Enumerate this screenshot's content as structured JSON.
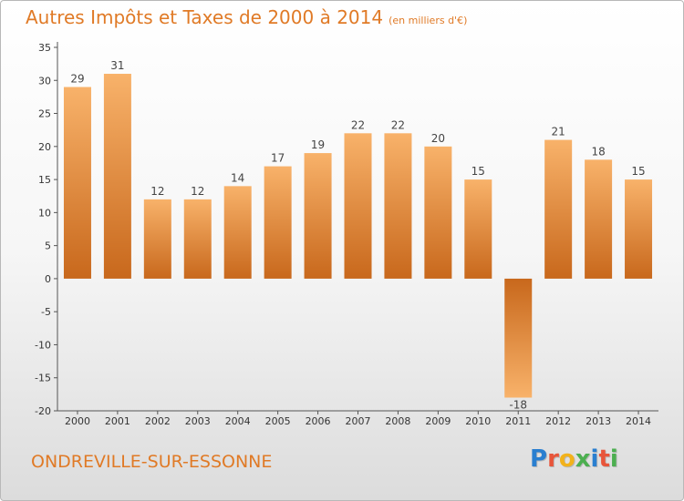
{
  "title": "Autres Impôts et Taxes de 2000 à 2014",
  "subtitle": "(en milliers d'€)",
  "commune": "ONDREVILLE-SUR-ESSONNE",
  "logo": {
    "letters": [
      "P",
      "r",
      "o",
      "x",
      "i",
      "t",
      "i"
    ],
    "colors": [
      "#2a7fd0",
      "#e8553a",
      "#f2b21b",
      "#4caf50",
      "#2a7fd0",
      "#e8553a",
      "#4caf50"
    ]
  },
  "chart_data": {
    "type": "bar",
    "categories": [
      "2000",
      "2001",
      "2002",
      "2003",
      "2004",
      "2005",
      "2006",
      "2007",
      "2008",
      "2009",
      "2010",
      "2011",
      "2012",
      "2013",
      "2014"
    ],
    "values": [
      29,
      31,
      12,
      12,
      14,
      17,
      19,
      22,
      22,
      20,
      15,
      -18,
      21,
      18,
      15
    ],
    "data_labels": [
      "29",
      "31",
      "12",
      "12",
      "14",
      "17",
      "19",
      "22",
      "22",
      "20",
      "15",
      "-18",
      "21",
      "18",
      "15"
    ],
    "ylim": [
      -20,
      35
    ],
    "yticks": [
      -20,
      -15,
      -10,
      -5,
      0,
      5,
      10,
      15,
      20,
      25,
      30,
      35
    ],
    "grid": false,
    "bar_color": "#f0953a",
    "bar_color_dark": "#c8681c",
    "bar_color_light": "#f8b26a"
  }
}
